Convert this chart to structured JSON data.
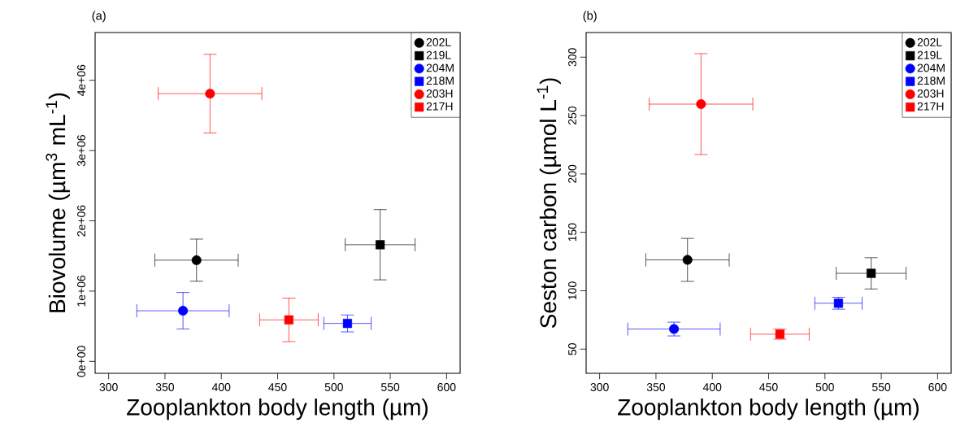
{
  "chart_data": [
    {
      "type": "scatter",
      "title": "(a)",
      "xlabel": "Zooplankton body length (µm)",
      "ylabel": "Biovolume (µm$^{3}$ mL$^{-1}$)",
      "xlim": [
        288,
        612
      ],
      "ylim": [
        -170000,
        4680000
      ],
      "xticks": [
        300,
        350,
        400,
        450,
        500,
        550,
        600
      ],
      "yticks": [
        {
          "value": 0,
          "label": "0e+00"
        },
        {
          "value": 1000000,
          "label": "1e+06"
        },
        {
          "value": 2000000,
          "label": "2e+06"
        },
        {
          "value": 3000000,
          "label": "3e+06"
        },
        {
          "value": 4000000,
          "label": "4e+06"
        }
      ],
      "legend": "top right",
      "grid": false,
      "series": [
        {
          "name": "202L",
          "color": "#000000",
          "marker": "circle",
          "x": [
            378
          ],
          "values": [
            1440000
          ],
          "xerrors": [
            37
          ],
          "errors": [
            300000
          ]
        },
        {
          "name": "219L",
          "color": "#000000",
          "marker": "square",
          "x": [
            541
          ],
          "values": [
            1660000
          ],
          "xerrors": [
            31
          ],
          "errors": [
            500000
          ]
        },
        {
          "name": "204M",
          "color": "#0000ff",
          "marker": "circle",
          "x": [
            366
          ],
          "values": [
            720000
          ],
          "xerrors": [
            41
          ],
          "errors": [
            260000
          ]
        },
        {
          "name": "218M",
          "color": "#0000ff",
          "marker": "square",
          "x": [
            512
          ],
          "values": [
            540000
          ],
          "xerrors": [
            21
          ],
          "errors": [
            120000
          ]
        },
        {
          "name": "203H",
          "color": "#ff0000",
          "marker": "circle",
          "x": [
            390
          ],
          "values": [
            3810000
          ],
          "xerrors": [
            46
          ],
          "errors": [
            560000
          ]
        },
        {
          "name": "217H",
          "color": "#ff0000",
          "marker": "square",
          "x": [
            460
          ],
          "values": [
            590000
          ],
          "xerrors": [
            26
          ],
          "errors": [
            310000
          ]
        }
      ]
    },
    {
      "type": "scatter",
      "title": "(b)",
      "xlabel": "Zooplankton body length (µm)",
      "ylabel": "Seston carbon (µmol L$^{-1}$)",
      "xlim": [
        288,
        612
      ],
      "ylim": [
        29.3,
        321.1
      ],
      "xticks": [
        300,
        350,
        400,
        450,
        500,
        550,
        600
      ],
      "yticks": [
        50,
        100,
        150,
        200,
        250,
        300
      ],
      "legend": "top right",
      "grid": false,
      "series": [
        {
          "name": "202L",
          "color": "#000000",
          "marker": "circle",
          "x": [
            378
          ],
          "values": [
            126.4
          ],
          "xerrors": [
            37
          ],
          "errors": [
            18.4
          ]
        },
        {
          "name": "219L",
          "color": "#000000",
          "marker": "square",
          "x": [
            541
          ],
          "values": [
            114.9
          ],
          "xerrors": [
            31
          ],
          "errors": [
            13.4
          ]
        },
        {
          "name": "204M",
          "color": "#0000ff",
          "marker": "circle",
          "x": [
            366
          ],
          "values": [
            67.2
          ],
          "xerrors": [
            41
          ],
          "errors": [
            5.9
          ]
        },
        {
          "name": "218M",
          "color": "#0000ff",
          "marker": "square",
          "x": [
            512
          ],
          "values": [
            89.3
          ],
          "xerrors": [
            21
          ],
          "errors": [
            5.1
          ]
        },
        {
          "name": "203H",
          "color": "#ff0000",
          "marker": "circle",
          "x": [
            390
          ],
          "values": [
            259.8
          ],
          "xerrors": [
            46
          ],
          "errors": [
            43.2
          ]
        },
        {
          "name": "217H",
          "color": "#ff0000",
          "marker": "square",
          "x": [
            460
          ],
          "values": [
            62.8
          ],
          "xerrors": [
            26
          ],
          "errors": [
            4.3
          ]
        }
      ]
    }
  ]
}
